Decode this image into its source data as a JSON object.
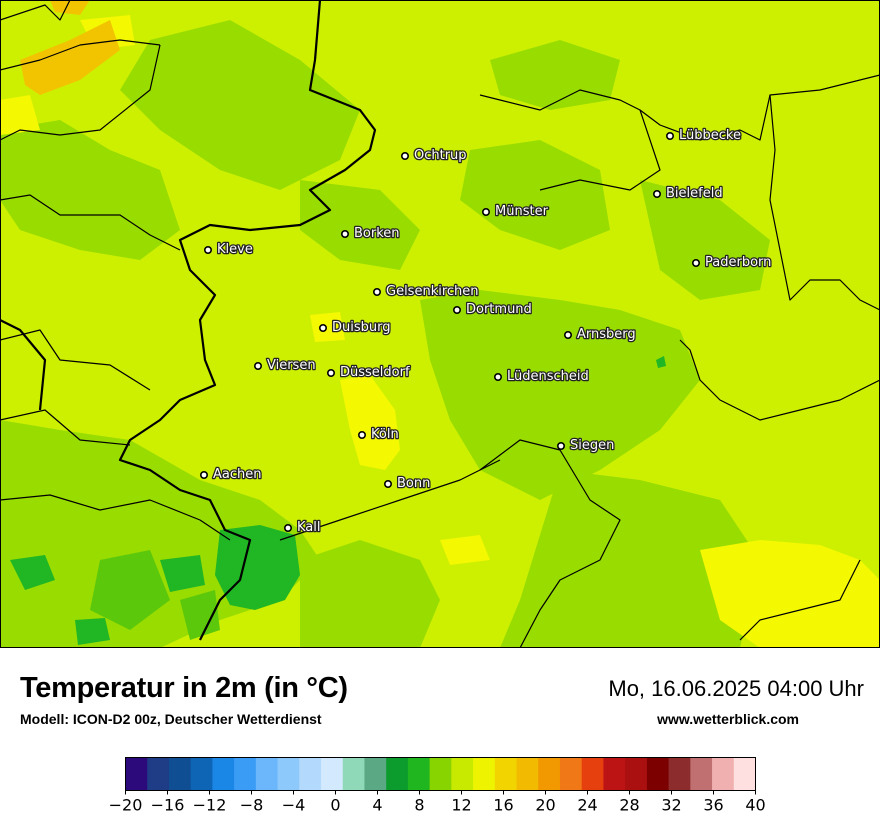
{
  "map": {
    "cities": [
      {
        "name": "Ochtrup"
      },
      {
        "name": "Lübbecke"
      },
      {
        "name": "Bielefeld"
      },
      {
        "name": "Münster"
      },
      {
        "name": "Borken"
      },
      {
        "name": "Kleve"
      },
      {
        "name": "Paderborn"
      },
      {
        "name": "Gelsenkirchen"
      },
      {
        "name": "Dortmund"
      },
      {
        "name": "Duisburg"
      },
      {
        "name": "Arnsberg"
      },
      {
        "name": "Viersen"
      },
      {
        "name": "Düsseldorf"
      },
      {
        "name": "Lüdenscheid"
      },
      {
        "name": "Köln"
      },
      {
        "name": "Siegen"
      },
      {
        "name": "Aachen"
      },
      {
        "name": "Bonn"
      },
      {
        "name": "Kall"
      }
    ]
  },
  "footer": {
    "title": "Temperatur in 2m (in °C)",
    "model": "Modell: ICON-D2 00z, Deutscher Wetterdienst",
    "datetime": "Mo, 16.06.2025 04:00 Uhr",
    "website": "www.wetterblick.com"
  },
  "legend": {
    "min": -20,
    "max": 40,
    "ticks": [
      "−20",
      "−16",
      "−12",
      "−8",
      "−4",
      "0",
      "4",
      "8",
      "12",
      "16",
      "20",
      "24",
      "28",
      "32",
      "36",
      "40"
    ],
    "colors": [
      "#2c0a7c",
      "#1f3c86",
      "#104e94",
      "#0e64b5",
      "#1a86e5",
      "#3a9cf5",
      "#6cb6fb",
      "#8ec9fc",
      "#b3dafd",
      "#d3e9fd",
      "#8fd8b8",
      "#5aa884",
      "#0c9c2e",
      "#20b620",
      "#88d400",
      "#c8ea00",
      "#eef400",
      "#f2d400",
      "#f2ba00",
      "#f29800",
      "#f07816",
      "#e6400e",
      "#bc1414",
      "#aa1010",
      "#7c0000",
      "#8c2c2c",
      "#c07070",
      "#f0b0b0",
      "#ffe0e0"
    ],
    "map_colors": {
      "warm_yellow_green": "#cdf000",
      "green": "#98dc00",
      "yellow": "#f4f800",
      "dark_green": "#20b624",
      "orange": "#f2c400"
    }
  }
}
